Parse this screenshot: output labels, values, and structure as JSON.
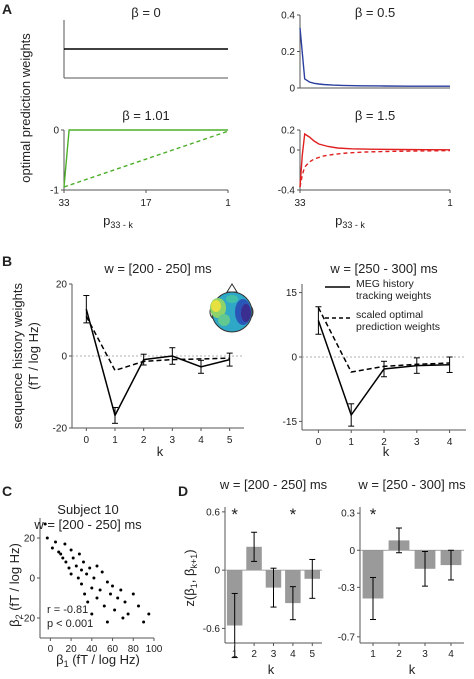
{
  "panel_letters": [
    "A",
    "B",
    "C",
    "D"
  ],
  "panelA": {
    "ylabel": "optimal prediction weights",
    "xlabel_main": "p",
    "xlabel_sub": "33 - k",
    "x_ticks": [
      "33",
      "17",
      "1"
    ],
    "line_colors": {
      "b0": "#000000",
      "b05": "#2a3f9d",
      "b101": "#4caf2a",
      "b15": "#e02020"
    }
  },
  "panelB": {
    "ylabel_line1": "sequence history weights",
    "ylabel_line2": "(fT / log Hz)",
    "xlabel": "k",
    "legend": {
      "solid_line1": "MEG history",
      "solid_line2": "tracking weights",
      "dashed_line1": "scaled optimal",
      "dashed_line2": "prediction weights"
    }
  },
  "panelC": {
    "title_line1": "Subject 10",
    "title_line2": "w = [200 - 250] ms",
    "xlabel_main": "β",
    "xlabel_sub": "1",
    "xlabel_unit": " (fT / log Hz)",
    "ylabel_main": "β",
    "ylabel_sub": "2",
    "ylabel_unit": " (fT / log Hz)",
    "stat_r": "r = -0.81",
    "stat_p": "p < 0.001"
  },
  "panelD": {
    "ylabel": "z(β",
    "ylabel_sub1": "1",
    "ylabel_mid": ", β",
    "ylabel_sub2": "k+1",
    "ylabel_end": ")",
    "xlabel": "k",
    "star": "*"
  },
  "chart_data": [
    {
      "id": "A1",
      "type": "line",
      "title": "β = 0",
      "xlim": [
        33,
        1
      ],
      "ylim": [
        -0.4,
        0.4
      ],
      "yticks": [],
      "xticks": [],
      "series": [
        {
          "color": "#000000",
          "style": "solid",
          "x": [
            33,
            1
          ],
          "y": [
            0,
            0
          ]
        }
      ]
    },
    {
      "id": "A2",
      "type": "line",
      "title": "β = 0.5",
      "xlim": [
        33,
        1
      ],
      "ylim": [
        0,
        0.4
      ],
      "yticks": [
        0,
        0.2,
        0.4
      ],
      "ytick_labels": [
        "0",
        "0.2",
        "0.4"
      ],
      "xticks": [],
      "series": [
        {
          "color": "#2a3f9d",
          "style": "solid",
          "x": [
            33,
            32,
            31,
            30,
            29,
            28,
            26,
            24,
            20,
            15,
            10,
            5,
            1
          ],
          "y": [
            0.33,
            0.05,
            0.033,
            0.026,
            0.022,
            0.019,
            0.016,
            0.014,
            0.012,
            0.011,
            0.01,
            0.01,
            0.01
          ]
        }
      ]
    },
    {
      "id": "A3",
      "type": "line",
      "title": "β = 1.01",
      "xlim": [
        33,
        1
      ],
      "ylim": [
        -1,
        0
      ],
      "yticks": [
        -1,
        0
      ],
      "ytick_labels": [
        "-1",
        "0"
      ],
      "xticks": [
        33,
        17,
        1
      ],
      "series": [
        {
          "color": "#4caf2a",
          "style": "solid",
          "x": [
            33,
            32,
            1
          ],
          "y": [
            -0.95,
            0.0,
            0.0
          ]
        },
        {
          "color": "#4caf2a",
          "style": "dashed",
          "x": [
            33,
            1
          ],
          "y": [
            -0.95,
            -0.02
          ]
        }
      ]
    },
    {
      "id": "A4",
      "type": "line",
      "title": "β = 1.5",
      "xlim": [
        33,
        1
      ],
      "ylim": [
        -0.4,
        0.2
      ],
      "yticks": [
        -0.4,
        0,
        0.2
      ],
      "ytick_labels": [
        "-0.4",
        "0",
        "0.2"
      ],
      "xticks": [
        33,
        1
      ],
      "series": [
        {
          "color": "#e02020",
          "style": "solid",
          "x": [
            33,
            32.5,
            32,
            31,
            30,
            29,
            27,
            25,
            22,
            18,
            12,
            6,
            1
          ],
          "y": [
            -0.37,
            -0.05,
            0.16,
            0.13,
            0.09,
            0.06,
            0.035,
            0.02,
            0.012,
            0.008,
            0.005,
            0.003,
            0.002
          ]
        },
        {
          "color": "#e02020",
          "style": "dashed",
          "x": [
            33,
            32.5,
            32,
            31,
            30,
            28,
            26,
            23,
            19,
            14,
            8,
            1
          ],
          "y": [
            -0.37,
            -0.25,
            -0.17,
            -0.12,
            -0.09,
            -0.06,
            -0.045,
            -0.03,
            -0.02,
            -0.014,
            -0.01,
            -0.006
          ]
        }
      ]
    },
    {
      "id": "B1",
      "type": "line",
      "title": "w = [200 - 250] ms",
      "xlim": [
        -0.5,
        5.5
      ],
      "ylim": [
        -20,
        20
      ],
      "yticks": [
        -20,
        0,
        20
      ],
      "xticks": [
        0,
        1,
        2,
        3,
        4,
        5
      ],
      "series": [
        {
          "name": "MEG history tracking weights",
          "style": "solid",
          "x": [
            0,
            1,
            2,
            3,
            4,
            5
          ],
          "y": [
            13,
            -16.5,
            -1,
            0,
            -3,
            -1
          ],
          "err": [
            3.8,
            2.2,
            1.5,
            2.3,
            1.8,
            1.8
          ]
        },
        {
          "name": "scaled optimal prediction weights",
          "style": "dashed",
          "x": [
            0,
            1,
            2,
            3,
            4,
            5
          ],
          "y": [
            11,
            -4,
            -1.5,
            -1,
            -0.8,
            -0.6
          ]
        }
      ]
    },
    {
      "id": "B2",
      "type": "line",
      "title": "w = [250 - 300] ms",
      "xlim": [
        -0.5,
        4.5
      ],
      "ylim": [
        -17,
        17
      ],
      "yticks": [
        -15,
        0,
        15
      ],
      "xticks": [
        0,
        1,
        2,
        3,
        4
      ],
      "series": [
        {
          "name": "MEG history tracking weights",
          "style": "solid",
          "x": [
            0,
            1,
            2,
            3,
            4
          ],
          "y": [
            8.5,
            -13.5,
            -2.8,
            -2,
            -1.8
          ],
          "err": [
            3.2,
            2.6,
            1.8,
            1.8,
            1.8
          ]
        },
        {
          "name": "scaled optimal prediction weights",
          "style": "dashed",
          "x": [
            0,
            1,
            2,
            3,
            4
          ],
          "y": [
            11.5,
            -3.5,
            -2.2,
            -1.7,
            -1.4
          ]
        }
      ]
    },
    {
      "id": "C",
      "type": "scatter",
      "title": "Subject 10",
      "xlim": [
        -10,
        100
      ],
      "ylim": [
        -30,
        30
      ],
      "xticks": [
        0,
        20,
        40,
        60,
        80,
        100
      ],
      "yticks": [
        -20,
        0,
        20
      ],
      "x": [
        -5,
        -3,
        2,
        5,
        8,
        10,
        12,
        14,
        15,
        18,
        20,
        20,
        22,
        25,
        27,
        28,
        30,
        30,
        32,
        33,
        35,
        36,
        38,
        40,
        40,
        42,
        45,
        45,
        48,
        50,
        52,
        55,
        55,
        58,
        60,
        62,
        65,
        68,
        70,
        72,
        75,
        80,
        85,
        90,
        95
      ],
      "y": [
        27,
        20,
        15,
        18,
        13,
        12,
        10,
        17,
        8,
        5,
        14,
        2,
        10,
        6,
        0,
        12,
        4,
        -3,
        8,
        -8,
        2,
        -12,
        5,
        -5,
        -18,
        0,
        -10,
        6,
        -6,
        3,
        -14,
        -2,
        -22,
        -8,
        -4,
        -16,
        -10,
        -6,
        -20,
        -12,
        -18,
        -8,
        -14,
        -22,
        -18
      ]
    },
    {
      "id": "D1",
      "type": "bar",
      "title": "w = [200 - 250] ms",
      "categories": [
        "1",
        "2",
        "3",
        "4",
        "5"
      ],
      "values": [
        -0.57,
        0.24,
        -0.18,
        -0.34,
        -0.09
      ],
      "err": [
        0.33,
        0.15,
        0.2,
        0.17,
        0.2
      ],
      "significant": [
        true,
        false,
        false,
        true,
        false
      ],
      "ylim": [
        -0.75,
        0.65
      ],
      "yticks": [
        -0.6,
        0,
        0.6
      ],
      "ytick_labels": [
        "-0.6",
        "0",
        "0.6"
      ],
      "bar_color": "#9a9a9a"
    },
    {
      "id": "D2",
      "type": "bar",
      "title": "w = [250 - 300] ms",
      "categories": [
        "1",
        "2",
        "3",
        "4"
      ],
      "values": [
        -0.39,
        0.08,
        -0.15,
        -0.12
      ],
      "err": [
        0.17,
        0.1,
        0.14,
        0.12
      ],
      "significant": [
        true,
        false,
        false,
        false
      ],
      "ylim": [
        -0.75,
        0.35
      ],
      "yticks": [
        -0.7,
        -0.3,
        0,
        0.3
      ],
      "ytick_labels": [
        "-0.7",
        "-0.3",
        "0",
        "0.3"
      ],
      "bar_color": "#9a9a9a"
    }
  ]
}
